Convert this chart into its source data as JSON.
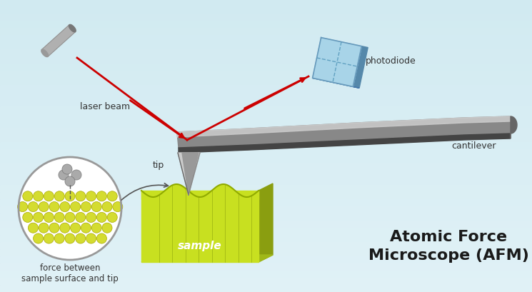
{
  "bg_color": "#d8eef5",
  "title_line1": "Atomic Force",
  "title_line2": "Microscope (AFM)",
  "title_color": "#1a1a1a",
  "title_fontsize": 16,
  "label_laser": "laser beam",
  "label_photodiode": "photodiode",
  "label_cantilever": "cantilever",
  "label_tip": "tip",
  "label_sample": "sample",
  "label_force": "force between\nsample surface and tip",
  "label_color": "#333333",
  "label_fontsize": 9,
  "laser_color": "#cc0000",
  "photodiode_color": "#a8d4e8",
  "photodiode_line_color": "#5599bb",
  "sample_color_top": "#c8e020",
  "sample_color_mid": "#a0b818",
  "sample_color_side": "#8a9e10",
  "atom_yellow": "#d4dc30",
  "atom_gray": "#aaaaaa",
  "circle_bg": "#ffffff"
}
